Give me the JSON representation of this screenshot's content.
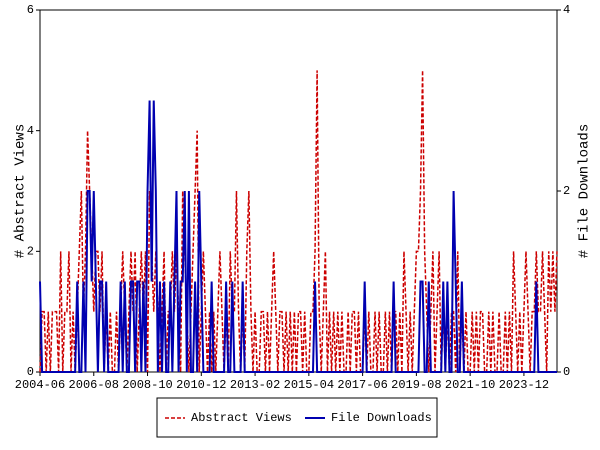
{
  "chart_data": {
    "type": "line",
    "y_label": "# Abstract Views",
    "y2_label": "# File Downloads",
    "x": [
      "2004-06",
      "2004-07",
      "2004-08",
      "2004-09",
      "2004-10",
      "2004-11",
      "2004-12",
      "2005-01",
      "2005-02",
      "2005-03",
      "2005-04",
      "2005-05",
      "2005-06",
      "2005-07",
      "2005-08",
      "2005-09",
      "2005-10",
      "2005-11",
      "2005-12",
      "2006-01",
      "2006-02",
      "2006-03",
      "2006-04",
      "2006-05",
      "2006-06",
      "2006-07",
      "2006-08",
      "2006-09",
      "2006-10",
      "2006-11",
      "2006-12",
      "2007-01",
      "2007-02",
      "2007-03",
      "2007-04",
      "2007-05",
      "2007-06",
      "2007-07",
      "2007-08",
      "2007-09",
      "2007-10",
      "2007-11",
      "2007-12",
      "2008-01",
      "2008-02",
      "2008-03",
      "2008-04",
      "2008-05",
      "2008-06",
      "2008-07",
      "2008-08",
      "2008-09",
      "2008-10",
      "2008-11",
      "2008-12",
      "2009-01",
      "2009-02",
      "2009-03",
      "2009-04",
      "2009-05",
      "2009-06",
      "2009-07",
      "2009-08",
      "2009-09",
      "2009-10",
      "2009-11",
      "2009-12",
      "2010-01",
      "2010-02",
      "2010-03",
      "2010-04",
      "2010-05",
      "2010-06",
      "2010-07",
      "2010-08",
      "2010-09",
      "2010-10",
      "2010-11",
      "2010-12",
      "2011-01",
      "2011-02",
      "2011-03",
      "2011-04",
      "2011-05",
      "2011-06",
      "2011-07",
      "2011-08",
      "2011-09",
      "2011-10",
      "2011-11",
      "2011-12",
      "2012-01",
      "2012-02",
      "2012-03",
      "2012-04",
      "2012-05",
      "2012-06",
      "2012-07",
      "2012-08",
      "2012-09",
      "2012-10",
      "2012-11",
      "2012-12",
      "2013-01",
      "2013-02",
      "2013-03",
      "2013-04",
      "2013-05",
      "2013-06",
      "2013-07",
      "2013-08",
      "2013-09",
      "2013-10",
      "2013-11",
      "2013-12",
      "2014-01",
      "2014-02",
      "2014-03",
      "2014-04",
      "2014-05",
      "2014-06",
      "2014-07",
      "2014-08",
      "2014-09",
      "2014-10",
      "2014-11",
      "2014-12",
      "2015-01",
      "2015-02",
      "2015-03",
      "2015-04",
      "2015-05",
      "2015-06",
      "2015-07",
      "2015-08",
      "2015-09",
      "2015-10",
      "2015-11",
      "2015-12",
      "2016-01",
      "2016-02",
      "2016-03",
      "2016-04",
      "2016-05",
      "2016-06",
      "2016-07",
      "2016-08",
      "2016-09",
      "2016-10",
      "2016-11",
      "2016-12",
      "2017-01",
      "2017-02",
      "2017-03",
      "2017-04",
      "2017-05",
      "2017-06",
      "2017-07",
      "2017-08",
      "2017-09",
      "2017-10",
      "2017-11",
      "2017-12",
      "2018-01",
      "2018-02",
      "2018-03",
      "2018-04",
      "2018-05",
      "2018-06",
      "2018-07",
      "2018-08",
      "2018-09",
      "2018-10",
      "2018-11",
      "2018-12",
      "2019-01",
      "2019-02",
      "2019-03",
      "2019-04",
      "2019-05",
      "2019-06",
      "2019-07",
      "2019-08",
      "2019-09",
      "2019-10",
      "2019-11",
      "2019-12",
      "2020-01",
      "2020-02",
      "2020-03",
      "2020-04",
      "2020-05",
      "2020-06",
      "2020-07",
      "2020-08",
      "2020-09",
      "2020-10",
      "2020-11",
      "2020-12",
      "2021-01",
      "2021-02",
      "2021-03",
      "2021-04",
      "2021-05",
      "2021-06",
      "2021-07",
      "2021-08",
      "2021-09",
      "2021-10",
      "2021-11",
      "2021-12",
      "2022-01",
      "2022-02",
      "2022-03",
      "2022-04",
      "2022-05",
      "2022-06",
      "2022-07",
      "2022-08",
      "2022-09",
      "2022-10",
      "2022-11",
      "2022-12",
      "2023-01",
      "2023-02",
      "2023-03",
      "2023-04",
      "2023-05",
      "2023-06",
      "2023-07",
      "2023-08",
      "2023-09",
      "2023-10",
      "2023-11",
      "2023-12",
      "2024-01",
      "2024-02",
      "2024-03",
      "2024-04",
      "2024-05",
      "2024-06",
      "2024-07",
      "2024-08",
      "2024-09",
      "2024-10",
      "2024-11",
      "2024-12",
      "2025-01",
      "2025-02",
      "2025-03",
      "2025-04"
    ],
    "xticks": [
      "2004-06",
      "2006-08",
      "2008-10",
      "2010-12",
      "2013-02",
      "2015-04",
      "2017-06",
      "2019-08",
      "2021-10",
      "2023-12"
    ],
    "ylim": [
      0,
      6
    ],
    "yticks": [
      0,
      2,
      4,
      6
    ],
    "y2lim": [
      0,
      4
    ],
    "y2ticks": [
      0,
      2,
      4
    ],
    "series": [
      {
        "name": "Abstract Views",
        "color": "#cc0000",
        "dash": true,
        "values": [
          0,
          1,
          1,
          0,
          1,
          0,
          1,
          1,
          1,
          0,
          2,
          0,
          1,
          1,
          2,
          0,
          1,
          0,
          1,
          2,
          3,
          1,
          2,
          4,
          3,
          2,
          1,
          2,
          2,
          1,
          2,
          0,
          1,
          0,
          1,
          0,
          0,
          1,
          0,
          1,
          2,
          1,
          0,
          1,
          2,
          1,
          2,
          0,
          1,
          2,
          1,
          2,
          0,
          3,
          2,
          1,
          2,
          1,
          0,
          1,
          2,
          0,
          1,
          1,
          2,
          1,
          2,
          1,
          0,
          3,
          2,
          1,
          0,
          1,
          2,
          3,
          4,
          0,
          1,
          2,
          1,
          0,
          1,
          0,
          1,
          0,
          1,
          2,
          1,
          0,
          1,
          0,
          2,
          1,
          1,
          3,
          1,
          0,
          1,
          0,
          2,
          3,
          1,
          0,
          1,
          0,
          0,
          1,
          1,
          0,
          1,
          0,
          1,
          2,
          1,
          0,
          1,
          1,
          0,
          1,
          0,
          1,
          0,
          1,
          0,
          1,
          1,
          0,
          1,
          0,
          0,
          1,
          1,
          2,
          5,
          1,
          0,
          1,
          2,
          0,
          1,
          0,
          1,
          0,
          1,
          0,
          1,
          0,
          0,
          1,
          0,
          1,
          1,
          0,
          1,
          0,
          0,
          1,
          0,
          1,
          0,
          0,
          1,
          0,
          1,
          0,
          0,
          1,
          0,
          1,
          0,
          1,
          1,
          0,
          1,
          0,
          2,
          1,
          0,
          1,
          0,
          1,
          2,
          2,
          3,
          5,
          2,
          1,
          0,
          1,
          2,
          0,
          1,
          2,
          0,
          1,
          0,
          1,
          0,
          1,
          1,
          0,
          2,
          0,
          1,
          0,
          1,
          0,
          0,
          1,
          0,
          1,
          0,
          1,
          1,
          0,
          0,
          1,
          0,
          1,
          0,
          0,
          1,
          0,
          0,
          1,
          0,
          1,
          0,
          2,
          1,
          0,
          1,
          0,
          1,
          2,
          1,
          0,
          1,
          1,
          2,
          1,
          1,
          2,
          1,
          0,
          2,
          1,
          2,
          1,
          2
        ]
      },
      {
        "name": "File Downloads",
        "color": "#0000b0",
        "axis": "y2",
        "values": [
          1,
          0,
          0,
          0,
          0,
          0,
          0,
          0,
          0,
          0,
          0,
          0,
          0,
          0,
          0,
          0,
          0,
          0,
          1,
          0,
          0,
          1,
          0,
          2,
          2,
          1,
          2,
          1,
          0,
          1,
          1,
          0,
          1,
          0,
          0,
          0,
          0,
          0,
          0,
          1,
          0,
          1,
          0,
          0,
          1,
          1,
          0,
          1,
          1,
          0,
          1,
          0,
          2,
          3,
          1,
          3,
          2,
          0,
          1,
          0,
          1,
          0,
          0,
          1,
          0,
          1,
          2,
          0,
          1,
          1,
          2,
          0,
          2,
          0,
          0,
          1,
          0,
          2,
          1,
          0,
          0,
          0,
          0,
          1,
          0,
          0,
          0,
          0,
          0,
          0,
          1,
          0,
          0,
          1,
          0,
          0,
          0,
          0,
          1,
          0,
          0,
          0,
          0,
          0,
          0,
          0,
          0,
          0,
          0,
          0,
          0,
          0,
          0,
          0,
          0,
          0,
          0,
          0,
          0,
          0,
          0,
          0,
          0,
          0,
          0,
          0,
          0,
          0,
          0,
          0,
          0,
          0,
          0,
          1,
          0,
          0,
          0,
          0,
          0,
          0,
          0,
          0,
          0,
          0,
          0,
          0,
          0,
          0,
          0,
          0,
          0,
          0,
          0,
          0,
          0,
          0,
          0,
          1,
          0,
          0,
          0,
          0,
          0,
          0,
          0,
          0,
          0,
          0,
          0,
          0,
          0,
          1,
          0,
          0,
          0,
          0,
          0,
          0,
          0,
          0,
          0,
          0,
          0,
          0,
          1,
          1,
          0,
          0,
          1,
          0,
          0,
          0,
          0,
          0,
          0,
          1,
          0,
          1,
          0,
          0,
          2,
          1,
          0,
          0,
          1,
          0,
          0,
          0,
          0,
          0,
          0,
          0,
          0,
          0,
          0,
          0,
          0,
          0,
          0,
          0,
          0,
          0,
          0,
          0,
          0,
          0,
          0,
          0,
          0,
          0,
          0,
          0,
          0,
          0,
          0,
          0,
          0,
          0,
          0,
          0,
          1,
          0,
          0,
          0,
          0,
          0,
          0,
          0,
          0,
          0,
          0
        ]
      }
    ]
  }
}
